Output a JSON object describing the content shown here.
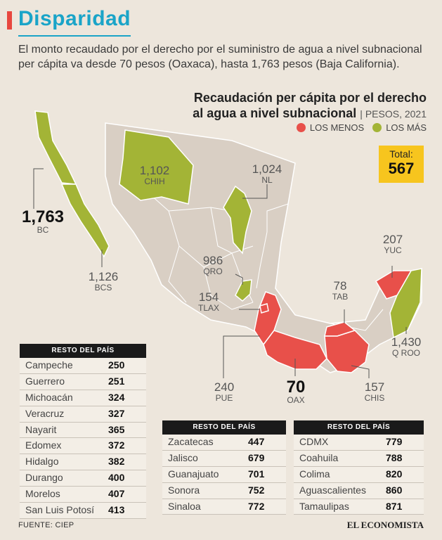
{
  "header": {
    "title": "Disparidad",
    "intro": "El monto recaudado por el derecho por el suministro de agua a nivel subnacional per cápita va desde 70 pesos (Oaxaca), hasta 1,763 pesos (Baja California)."
  },
  "map": {
    "title_line1": "Recaudación per cápita por el derecho",
    "title_line2": "al agua a nivel subnacional",
    "unit": "| PESOS, 2021",
    "legend": {
      "least": "LOS MENOS",
      "most": "LOS MÁS"
    },
    "total_label": "Total:",
    "total_value": "567",
    "colors": {
      "least": "#e8504a",
      "most": "#a3b436",
      "neutral": "#d9cfc4",
      "border": "#ffffff"
    },
    "labels": [
      {
        "value": "1,763",
        "code": "BC"
      },
      {
        "value": "1,126",
        "code": "BCS"
      },
      {
        "value": "1,102",
        "code": "CHIH"
      },
      {
        "value": "1,024",
        "code": "NL"
      },
      {
        "value": "986",
        "code": "QRO"
      },
      {
        "value": "154",
        "code": "TLAX"
      },
      {
        "value": "240",
        "code": "PUE"
      },
      {
        "value": "70",
        "code": "OAX"
      },
      {
        "value": "78",
        "code": "TAB"
      },
      {
        "value": "157",
        "code": "CHIS"
      },
      {
        "value": "207",
        "code": "YUC"
      },
      {
        "value": "1,430",
        "code": "Q ROO"
      }
    ]
  },
  "tables": [
    {
      "header": "RESTO DEL PAÍS",
      "rows": [
        {
          "name": "Campeche",
          "value": "250"
        },
        {
          "name": "Guerrero",
          "value": "251"
        },
        {
          "name": "Michoacán",
          "value": "324"
        },
        {
          "name": "Veracruz",
          "value": "327"
        },
        {
          "name": "Nayarit",
          "value": "365"
        },
        {
          "name": "Edomex",
          "value": "372"
        },
        {
          "name": "Hidalgo",
          "value": "382"
        },
        {
          "name": "Durango",
          "value": "400"
        },
        {
          "name": "Morelos",
          "value": "407"
        },
        {
          "name": "San Luis Potosí",
          "value": "413"
        }
      ]
    },
    {
      "header": "RESTO DEL PAÍS",
      "rows": [
        {
          "name": "Zacatecas",
          "value": "447"
        },
        {
          "name": "Jalisco",
          "value": "679"
        },
        {
          "name": "Guanajuato",
          "value": "701"
        },
        {
          "name": "Sonora",
          "value": "752"
        },
        {
          "name": "Sinaloa",
          "value": "772"
        }
      ]
    },
    {
      "header": "RESTO DEL PAÍS",
      "rows": [
        {
          "name": "CDMX",
          "value": "779"
        },
        {
          "name": "Coahuila",
          "value": "788"
        },
        {
          "name": "Colima",
          "value": "820"
        },
        {
          "name": "Aguascalientes",
          "value": "860"
        },
        {
          "name": "Tamaulipas",
          "value": "871"
        }
      ]
    }
  ],
  "footer": {
    "source": "FUENTE: CIEP",
    "brand": "EL ECONOMISTA"
  }
}
